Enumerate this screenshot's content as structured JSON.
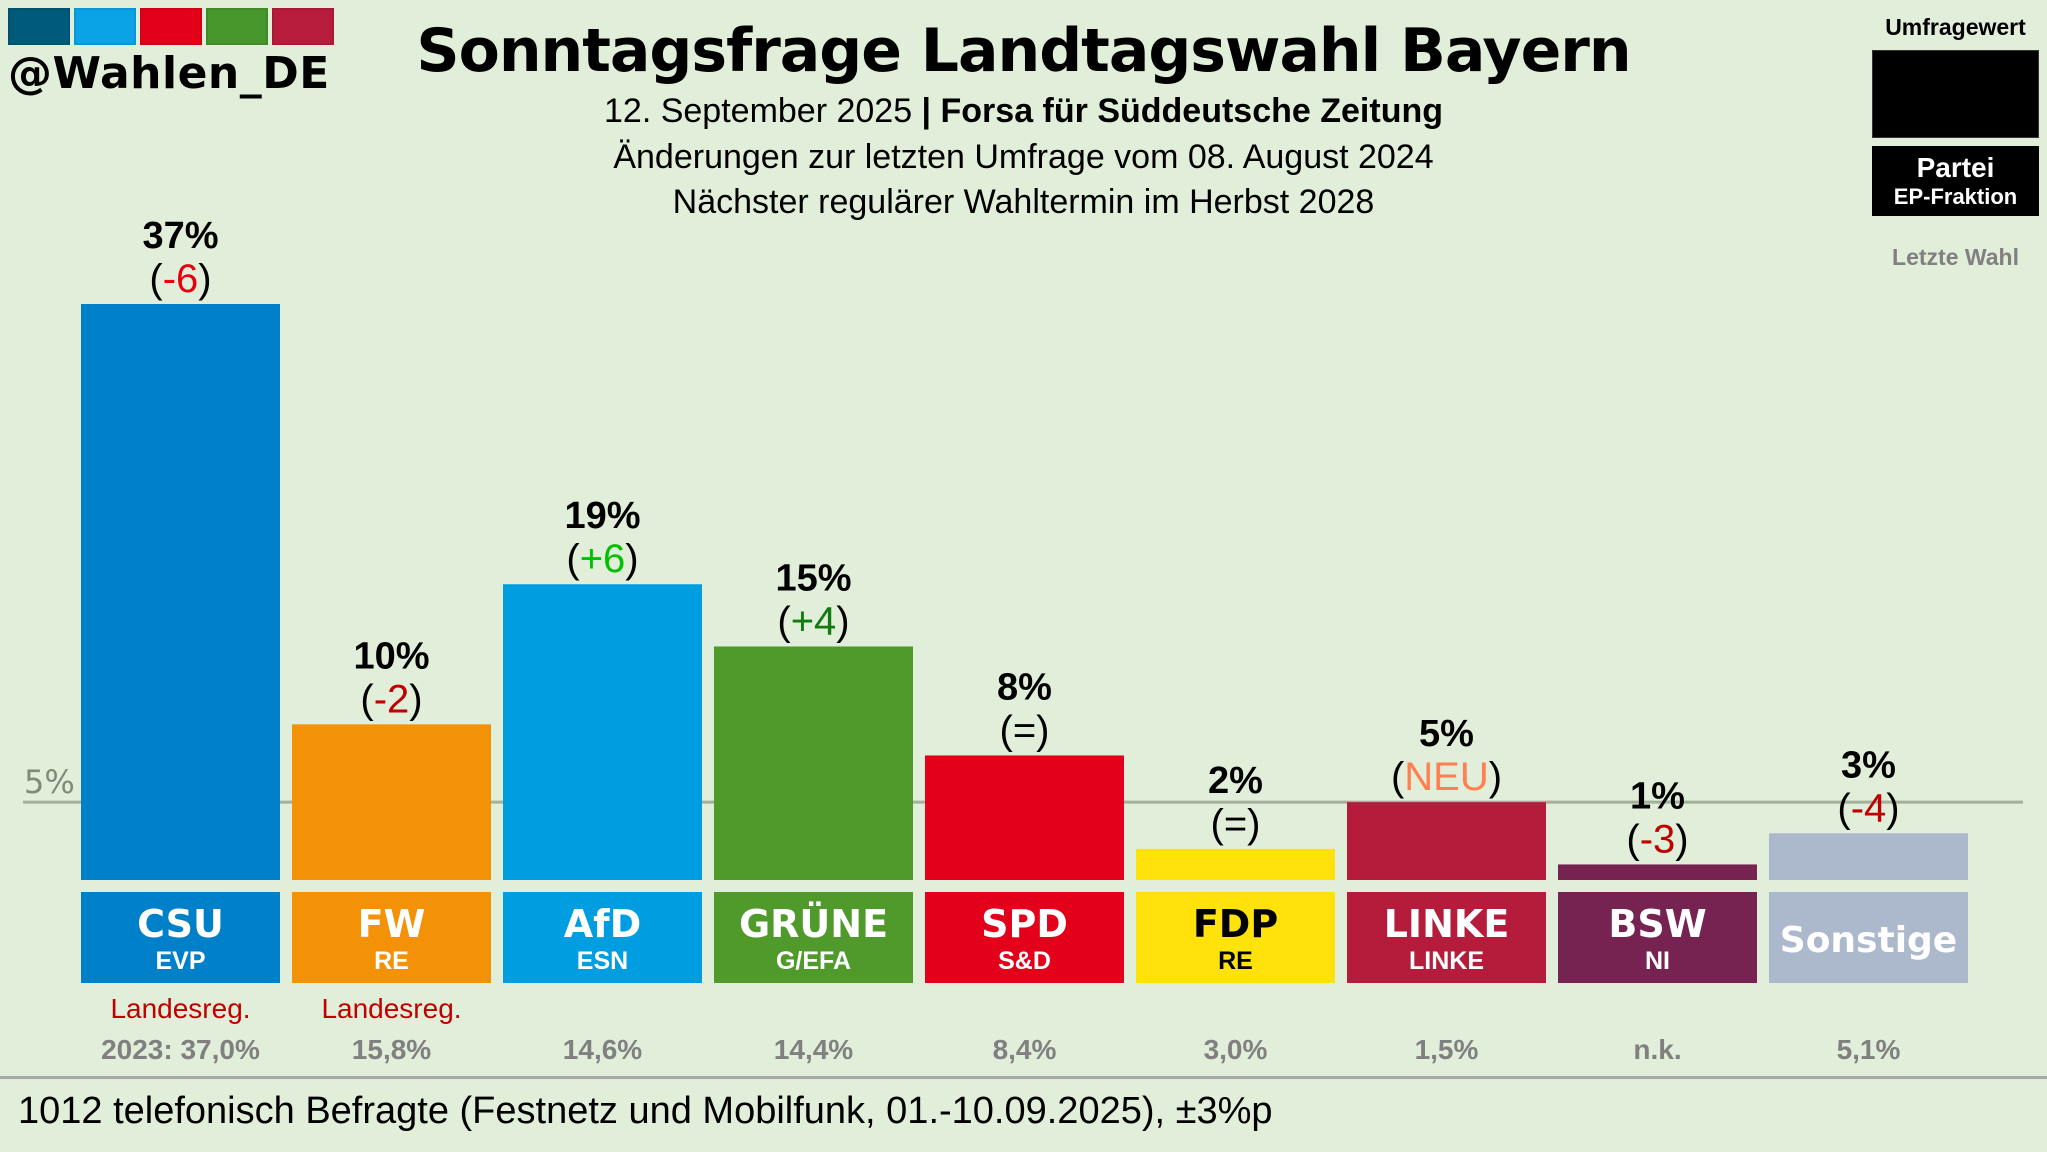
{
  "brand": {
    "handle": "@Wahlen_DE",
    "logo_colors": [
      "#005a7a",
      "#0aa3e6",
      "#e2001a",
      "#46962b",
      "#b81c3c"
    ]
  },
  "header": {
    "title": "Sonntagsfrage Landtagswahl Bayern",
    "date": "12. September 2025",
    "separator": " | ",
    "institute": "Forsa für Süddeutsche Zeitung",
    "changes_note": "Änderungen zur letzten Umfrage vom 08. August 2024",
    "next_election": "Nächster regulärer Wahltermin im Herbst 2028"
  },
  "legend": {
    "value_label": "Umfragewert",
    "party_label": "Partei",
    "group_label": "EP-Fraktion",
    "last_election_label": "Letzte Wahl"
  },
  "footer": {
    "note": "1012 telefonisch Befragte (Festnetz und Mobilfunk, 01.-10.09.2025), ±3%p"
  },
  "chart_data": {
    "type": "bar",
    "title": "Sonntagsfrage Landtagswahl Bayern",
    "ylim": [
      0,
      37
    ],
    "threshold_line": {
      "value": 5,
      "label": "5%"
    },
    "categories": [
      "CSU",
      "FW",
      "AfD",
      "GRÜNE",
      "SPD",
      "FDP",
      "LINKE",
      "BSW",
      "Sonstige"
    ],
    "values": [
      37,
      10,
      19,
      15,
      8,
      2,
      5,
      1,
      3
    ],
    "value_labels": [
      "37%",
      "10%",
      "19%",
      "15%",
      "8%",
      "2%",
      "5%",
      "1%",
      "3%"
    ],
    "changes": [
      "-6",
      "-2",
      "+6",
      "+4",
      "=",
      "=",
      "NEU",
      "-3",
      "-4"
    ],
    "change_colors": [
      "#e8000b",
      "#c00000",
      "#00c000",
      "#117a11",
      "#000000",
      "#000000",
      "#ff7f50",
      "#c00000",
      "#c00000"
    ],
    "groups": [
      "EVP",
      "RE",
      "ESN",
      "G/EFA",
      "S&D",
      "RE",
      "LINKE",
      "NI",
      ""
    ],
    "colors": [
      "#0080c8",
      "#f39207",
      "#009ee0",
      "#509a2c",
      "#e3001b",
      "#ffe20b",
      "#b51c3c",
      "#772351",
      "#acb8cb"
    ],
    "label_text_colors": [
      "#ffffff",
      "#ffffff",
      "#ffffff",
      "#ffffff",
      "#ffffff",
      "#000000",
      "#ffffff",
      "#ffffff",
      "#ffffff"
    ],
    "government_note": [
      "Landesreg.",
      "Landesreg.",
      "",
      "",
      "",
      "",
      "",
      "",
      ""
    ],
    "last_election": [
      "2023: 37,0%",
      "15,8%",
      "14,6%",
      "14,4%",
      "8,4%",
      "3,0%",
      "1,5%",
      "n.k.",
      "5,1%"
    ]
  }
}
